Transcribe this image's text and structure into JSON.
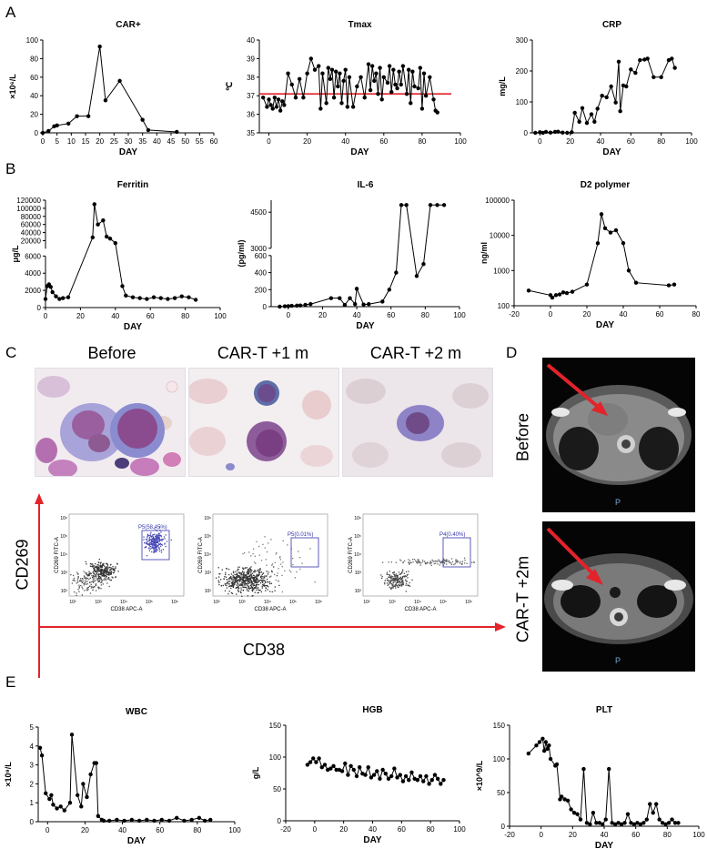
{
  "panels": {
    "A": "A",
    "B": "B",
    "C": "C",
    "D": "D",
    "E": "E"
  },
  "chart_data": [
    {
      "id": "car",
      "type": "line",
      "title": "CAR+",
      "xlabel": "DAY",
      "ylabel": "×10⁶/L",
      "xlim": [
        0,
        60
      ],
      "ylim": [
        0,
        100
      ],
      "xticks": [
        0,
        5,
        10,
        15,
        20,
        25,
        30,
        35,
        40,
        45,
        50,
        55,
        60
      ],
      "yticks": [
        0,
        20,
        40,
        60,
        80,
        100
      ],
      "series": [
        {
          "x": [
            0,
            2,
            4,
            5,
            9,
            12,
            16,
            20,
            22,
            27,
            35,
            37,
            47
          ],
          "y": [
            0,
            2,
            7,
            8,
            10,
            18,
            18,
            93,
            35,
            56,
            14,
            3,
            1
          ]
        }
      ]
    },
    {
      "id": "tmax",
      "type": "line",
      "title": "Tmax",
      "xlabel": "DAY",
      "ylabel": "℃",
      "xlim": [
        -5,
        100
      ],
      "ylim": [
        35,
        40
      ],
      "xticks": [
        0,
        20,
        40,
        60,
        80,
        100
      ],
      "yticks": [
        35,
        36,
        37,
        38,
        39,
        40
      ],
      "threshold": 37.1,
      "threshold_color": "#e3232a",
      "series": [
        {
          "x": [
            -3,
            -1,
            0,
            1,
            2,
            3,
            4,
            5,
            6,
            7,
            8,
            10,
            12,
            14,
            16,
            18,
            20,
            22,
            24,
            26,
            27,
            28,
            30,
            31,
            32,
            33,
            34,
            35,
            36,
            37,
            38,
            39,
            40,
            41,
            42,
            44,
            46,
            48,
            50,
            52,
            53,
            54,
            55,
            56,
            57,
            58,
            59,
            60,
            62,
            63,
            64,
            65,
            66,
            67,
            68,
            69,
            70,
            72,
            73,
            74,
            75,
            76,
            78,
            79,
            80,
            81,
            82,
            84,
            86,
            87,
            88
          ],
          "y": [
            36.9,
            36.4,
            36.8,
            36.5,
            36.3,
            36.9,
            36.4,
            36.8,
            36.2,
            36.7,
            36.5,
            38.2,
            37.6,
            36.9,
            37.9,
            36.9,
            38.2,
            39.0,
            38.4,
            38.6,
            36.3,
            38.2,
            36.6,
            38.5,
            37.9,
            38.4,
            36.9,
            38.3,
            37.5,
            38.2,
            36.6,
            37.8,
            38.4,
            36.4,
            38.0,
            36.4,
            37.5,
            38.0,
            36.9,
            38.7,
            37.3,
            38.6,
            37.8,
            38.2,
            37.1,
            38.5,
            36.8,
            38.0,
            37.7,
            38.6,
            37.2,
            38.4,
            37.6,
            37.4,
            38.3,
            37.6,
            38.6,
            37.1,
            38.4,
            36.6,
            38.3,
            37.5,
            37.4,
            38.5,
            36.3,
            38.2,
            37.0,
            38.0,
            36.8,
            36.2,
            36.1
          ]
        }
      ]
    },
    {
      "id": "crp",
      "type": "line",
      "title": "CRP",
      "xlabel": "DAY",
      "ylabel": "mg/L",
      "xlim": [
        -5,
        100
      ],
      "ylim": [
        0,
        300
      ],
      "xticks": [
        0,
        20,
        40,
        60,
        80,
        100
      ],
      "yticks": [
        0,
        100,
        200,
        300
      ],
      "series": [
        {
          "x": [
            -3,
            0,
            2,
            4,
            7,
            10,
            12,
            15,
            18,
            21,
            23,
            26,
            28,
            31,
            34,
            36,
            38,
            41,
            44,
            47,
            50,
            52,
            53,
            55,
            57,
            60,
            63,
            66,
            69,
            71,
            75,
            80,
            85,
            87,
            89
          ],
          "y": [
            0,
            2,
            0,
            3,
            1,
            3,
            4,
            1,
            0,
            2,
            65,
            36,
            80,
            32,
            60,
            36,
            78,
            120,
            115,
            150,
            98,
            230,
            70,
            153,
            150,
            205,
            194,
            235,
            237,
            240,
            180,
            180,
            235,
            240,
            210
          ]
        }
      ]
    },
    {
      "id": "ferritin",
      "type": "line",
      "title": "Ferritin",
      "xlabel": "DAY",
      "ylabel": "μg/L",
      "xlim": [
        0,
        100
      ],
      "ylim_upper": [
        0,
        120000
      ],
      "ylim_lower": [
        0,
        6000
      ],
      "xticks": [
        0,
        20,
        40,
        60,
        80,
        100
      ],
      "yticks_upper": [
        20000,
        40000,
        60000,
        80000,
        100000,
        120000
      ],
      "yticks_lower": [
        0,
        2000,
        4000,
        6000
      ],
      "series": [
        {
          "x": [
            0,
            1,
            2,
            3,
            4,
            6,
            8,
            10,
            13,
            27,
            28,
            30,
            33,
            35,
            37,
            40,
            44,
            46,
            50,
            54,
            58,
            62,
            66,
            70,
            74,
            78,
            82,
            86
          ],
          "y": [
            1000,
            2500,
            2700,
            2400,
            1800,
            1300,
            1000,
            1100,
            1200,
            28000,
            110000,
            60000,
            70000,
            30000,
            25000,
            14000,
            2500,
            1400,
            1200,
            1100,
            1000,
            1200,
            1100,
            1000,
            1100,
            1300,
            1200,
            900
          ]
        }
      ]
    },
    {
      "id": "il6",
      "type": "line",
      "title": "IL-6",
      "xlabel": "DAY",
      "ylabel": "(pg/ml)",
      "xlim": [
        -10,
        100
      ],
      "ylim_upper": [
        3000,
        5000
      ],
      "ylim_lower": [
        0,
        600
      ],
      "xticks": [
        0,
        20,
        40,
        60,
        80,
        100
      ],
      "yticks_upper": [
        3000,
        4500
      ],
      "yticks_lower": [
        0,
        200,
        400,
        600
      ],
      "series": [
        {
          "x": [
            -5,
            -2,
            0,
            2,
            5,
            7,
            10,
            13,
            25,
            30,
            33,
            36,
            39,
            40,
            44,
            47,
            55,
            59,
            63,
            66,
            69,
            75,
            79,
            83,
            87,
            91
          ],
          "y": [
            0,
            5,
            6,
            10,
            12,
            14,
            22,
            30,
            100,
            100,
            20,
            100,
            30,
            210,
            25,
            30,
            60,
            200,
            400,
            4800,
            4800,
            360,
            500,
            4800,
            4800,
            4800
          ]
        }
      ]
    },
    {
      "id": "d2",
      "type": "line",
      "title": "D2 polymer",
      "xlabel": "DAY",
      "ylabel": "ng/ml",
      "xlim": [
        -20,
        80
      ],
      "ylim": [
        100,
        100000
      ],
      "yscale": "log",
      "xticks": [
        -20,
        0,
        20,
        40,
        60,
        80
      ],
      "yticks": [
        100,
        1000,
        10000,
        100000
      ],
      "series": [
        {
          "x": [
            -12,
            0,
            1,
            3,
            5,
            7,
            9,
            12,
            20,
            26,
            28,
            30,
            33,
            36,
            40,
            43,
            47,
            65,
            68
          ],
          "y": [
            270,
            200,
            170,
            200,
            210,
            240,
            230,
            250,
            400,
            6000,
            40000,
            16000,
            12000,
            14000,
            6000,
            1000,
            450,
            380,
            400
          ]
        }
      ]
    },
    {
      "id": "wbc",
      "type": "line",
      "title": "WBC",
      "xlabel": "DAY",
      "ylabel": "×10⁹/L",
      "xlim": [
        -5,
        100
      ],
      "ylim": [
        0,
        5
      ],
      "xticks": [
        0,
        20,
        40,
        60,
        80,
        100
      ],
      "yticks": [
        0,
        1,
        2,
        3,
        4,
        5
      ],
      "series": [
        {
          "x": [
            -4,
            -3,
            -1,
            1,
            2,
            3,
            5,
            7,
            9,
            12,
            13,
            16,
            18,
            19,
            21,
            23,
            25,
            26,
            27,
            29,
            30,
            33,
            37,
            41,
            45,
            49,
            53,
            57,
            61,
            65,
            69,
            73,
            77,
            81,
            84,
            87
          ],
          "y": [
            3.9,
            3.5,
            1.5,
            1.2,
            1.4,
            0.9,
            0.7,
            0.8,
            0.6,
            1.0,
            4.6,
            1.4,
            0.8,
            2.0,
            1.3,
            2.5,
            3.1,
            3.1,
            0.3,
            0.1,
            0.05,
            0.05,
            0.1,
            0.05,
            0.1,
            0.05,
            0.1,
            0.05,
            0.1,
            0.05,
            0.2,
            0.05,
            0.1,
            0.2,
            0.05,
            0.1
          ]
        }
      ]
    },
    {
      "id": "hgb",
      "type": "line",
      "title": "HGB",
      "xlabel": "DAY",
      "ylabel": "g/L",
      "xlim": [
        -20,
        100
      ],
      "ylim": [
        0,
        150
      ],
      "xticks": [
        -20,
        0,
        20,
        40,
        60,
        80,
        100
      ],
      "yticks": [
        0,
        50,
        100,
        150
      ],
      "series": [
        {
          "x": [
            -5,
            -3,
            -1,
            1,
            3,
            5,
            7,
            9,
            11,
            13,
            15,
            17,
            19,
            21,
            23,
            25,
            27,
            29,
            31,
            33,
            35,
            37,
            39,
            41,
            43,
            45,
            47,
            49,
            51,
            53,
            55,
            57,
            59,
            61,
            63,
            65,
            67,
            69,
            71,
            73,
            75,
            77,
            79,
            81,
            83,
            85,
            87,
            89
          ],
          "y": [
            88,
            92,
            98,
            92,
            98,
            84,
            88,
            80,
            82,
            86,
            80,
            80,
            78,
            90,
            72,
            86,
            80,
            70,
            84,
            74,
            72,
            84,
            68,
            72,
            78,
            66,
            80,
            74,
            66,
            70,
            82,
            68,
            72,
            62,
            70,
            64,
            76,
            66,
            64,
            70,
            62,
            70,
            58,
            64,
            72,
            66,
            58,
            64
          ]
        }
      ]
    },
    {
      "id": "plt",
      "type": "line",
      "title": "PLT",
      "xlabel": "DAY",
      "ylabel": "×10^9/L",
      "xlim": [
        -20,
        100
      ],
      "ylim": [
        0,
        150
      ],
      "xticks": [
        -20,
        0,
        20,
        40,
        60,
        80,
        100
      ],
      "yticks": [
        0,
        50,
        100,
        150
      ],
      "series": [
        {
          "x": [
            -8,
            -3,
            -1,
            1,
            2,
            3,
            4,
            5,
            6,
            9,
            10,
            12,
            13,
            15,
            17,
            19,
            21,
            23,
            25,
            27,
            29,
            31,
            33,
            35,
            37,
            39,
            41,
            43,
            45,
            47,
            49,
            51,
            53,
            55,
            57,
            59,
            61,
            63,
            65,
            67,
            69,
            71,
            73,
            75,
            77,
            79,
            81,
            83,
            85,
            87
          ],
          "y": [
            108,
            120,
            125,
            130,
            112,
            125,
            115,
            120,
            100,
            90,
            92,
            40,
            44,
            40,
            38,
            25,
            20,
            18,
            10,
            85,
            5,
            3,
            20,
            5,
            5,
            3,
            10,
            85,
            5,
            3,
            5,
            3,
            5,
            18,
            5,
            3,
            5,
            3,
            5,
            10,
            33,
            20,
            33,
            10,
            5,
            3,
            5,
            10,
            5,
            5
          ]
        }
      ]
    }
  ],
  "panel_c": {
    "micro_labels": [
      "Before",
      "CAR-T +1 m",
      "CAR-T +2 m"
    ],
    "y_axis_label": "CD269",
    "x_axis_label": "CD38",
    "axis_color": "#e3232a",
    "flows": [
      {
        "ylabel": "CD269 FITC-A",
        "xlabel": "CD38 APC-A",
        "gate": "P5(58.45%)"
      },
      {
        "ylabel": "CD269 FITC-A",
        "xlabel": "CD38 APC-A",
        "gate": "P5(0.01%)"
      },
      {
        "ylabel": "CD269 FITC-A",
        "xlabel": "CD38 APC-A",
        "gate": "P4(0.40%)"
      }
    ],
    "tick_labels": {
      "x": [
        "10²",
        "10³",
        "10⁴",
        "10⁵",
        "10⁶"
      ],
      "y": [
        "10²",
        "10³",
        "10⁴",
        "10⁵",
        "10⁶"
      ]
    },
    "gate_color": "#3333aa"
  },
  "panel_d": {
    "labels": [
      "Before",
      "CAR-T +2m"
    ],
    "marker": "P",
    "arrow_color": "#e3232a"
  }
}
